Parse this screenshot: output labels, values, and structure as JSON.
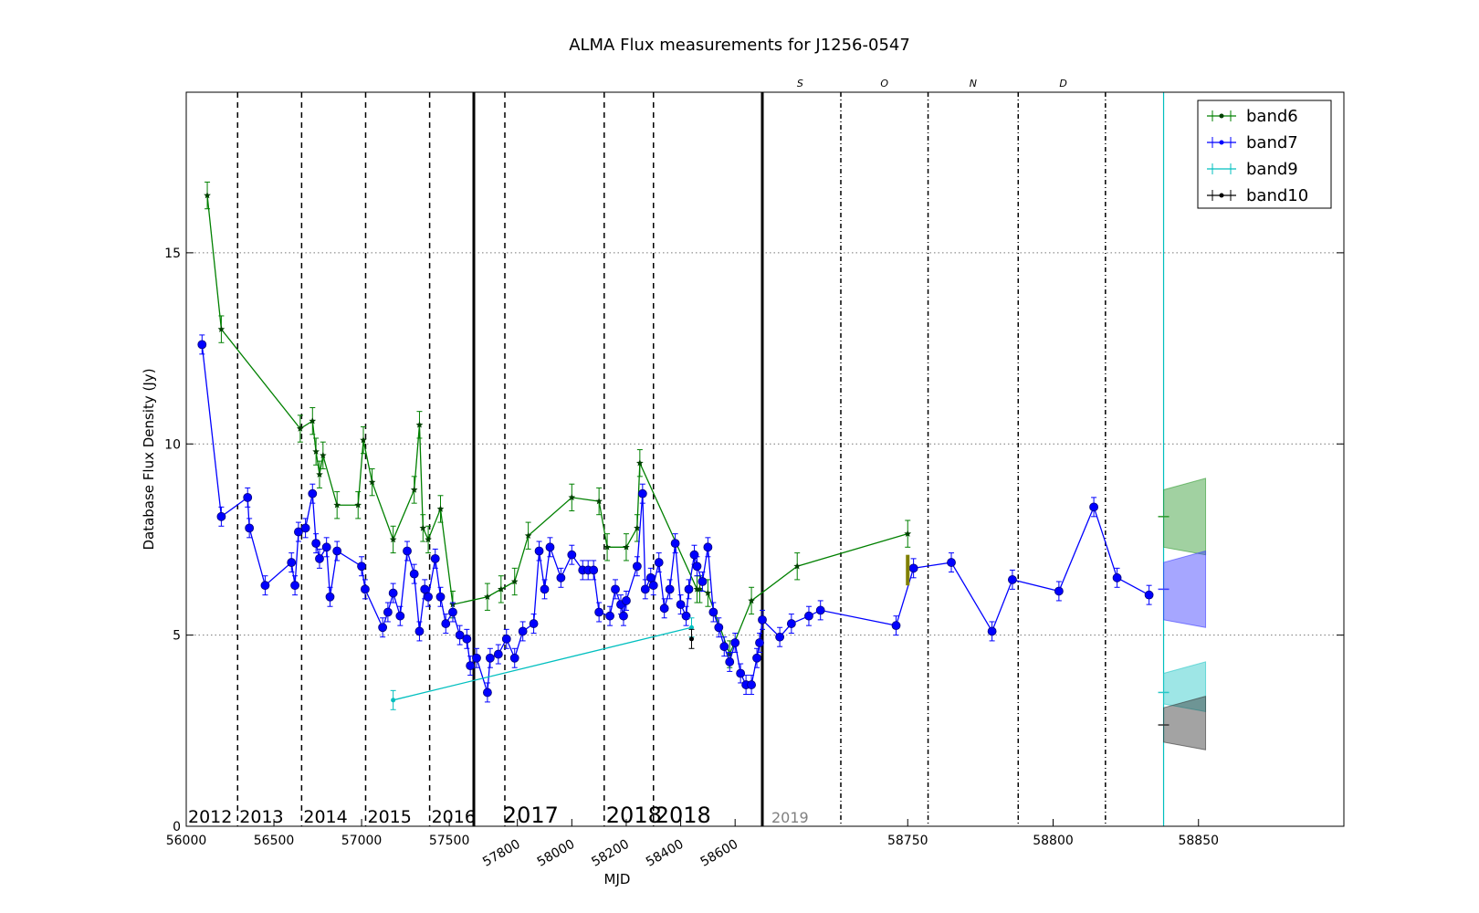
{
  "title": "ALMA Flux measurements for J1256-0547",
  "xlabel": "MJD",
  "ylabel": "Database Flux Density (Jy)",
  "colors": {
    "band6": "#008000",
    "band7": "#0000ff",
    "band9": "#00bfbf",
    "band10": "#000000",
    "band6_marker": "#004000",
    "olive": "#808000",
    "grid": "#777777",
    "year_2019": "#808080"
  },
  "chart_data": {
    "type": "line",
    "title": "ALMA Flux measurements for J1256-0547",
    "xlabel": "MJD",
    "ylabel": "Database Flux Density (Jy)",
    "ylim": [
      0,
      19.2
    ],
    "y_ticks": [
      "0",
      "5",
      "10",
      "15"
    ],
    "grid": "horizontal dotted at 5, 10, 15",
    "legend": {
      "placement": "top-right",
      "entries": [
        "band6",
        "band7",
        "band9",
        "band10"
      ]
    },
    "segments": [
      {
        "name": "2012-2016",
        "xlim": [
          56000,
          57640
        ],
        "x_ticks": [
          "56000",
          "56500",
          "57000",
          "57500"
        ],
        "year_labels": [
          "2012",
          "2013",
          "2014",
          "2015",
          "2016"
        ],
        "year_boundaries": [
          56293,
          56658,
          57023,
          57388
        ]
      },
      {
        "name": "2017-2018",
        "xlim": [
          57640,
          58700
        ],
        "x_ticks": [
          "57800",
          "58000",
          "58200",
          "58400",
          "58600"
        ],
        "year_labels": [
          "2017",
          "2018",
          "2018"
        ],
        "quarter_boundaries": [
          57754,
          58119,
          58300
        ]
      },
      {
        "name": "2019",
        "xlim": [
          58700,
          58900
        ],
        "x_ticks": [
          "58750",
          "58800",
          "58850"
        ],
        "year_labels": [
          "2019"
        ],
        "month_labels": [
          "S",
          "O",
          "N",
          "D"
        ],
        "month_boundaries": [
          58727,
          58757,
          58788,
          58818
        ],
        "current_date": 58838
      }
    ],
    "series": [
      {
        "name": "band6",
        "x": [
          56120,
          56200,
          56650,
          56720,
          56740,
          56760,
          56780,
          56860,
          56980,
          57010,
          57060,
          57180,
          57300,
          57330,
          57350,
          57380,
          57450,
          57520,
          57690,
          57740,
          57790,
          57840,
          58000,
          58100,
          58130,
          58200,
          58240,
          58250,
          58460,
          58470,
          58500,
          58580,
          58660,
          58712,
          58750
        ],
        "y": [
          16.5,
          13.0,
          10.4,
          10.6,
          9.8,
          9.2,
          9.7,
          8.4,
          8.4,
          10.1,
          9.0,
          7.5,
          8.8,
          10.5,
          7.8,
          7.5,
          8.3,
          5.8,
          6.0,
          6.2,
          6.4,
          7.6,
          8.6,
          8.5,
          7.3,
          7.3,
          7.8,
          9.5,
          6.2,
          6.2,
          6.1,
          4.5,
          5.9,
          6.8,
          7.65
        ]
      },
      {
        "name": "band7",
        "x": [
          56090,
          56200,
          56350,
          56360,
          56450,
          56600,
          56620,
          56640,
          56680,
          56720,
          56740,
          56760,
          56800,
          56820,
          56860,
          57000,
          57020,
          57120,
          57150,
          57180,
          57220,
          57260,
          57300,
          57330,
          57360,
          57380,
          57420,
          57450,
          57480,
          57520,
          57560,
          57600,
          57620,
          57650,
          57690,
          57700,
          57730,
          57760,
          57790,
          57820,
          57860,
          57880,
          57900,
          57920,
          57960,
          58000,
          58040,
          58060,
          58080,
          58100,
          58140,
          58160,
          58180,
          58190,
          58200,
          58240,
          58260,
          58270,
          58290,
          58300,
          58320,
          58340,
          58360,
          58380,
          58400,
          58420,
          58430,
          58450,
          58460,
          58480,
          58500,
          58520,
          58540,
          58560,
          58580,
          58600,
          58620,
          58640,
          58660,
          58680,
          58690,
          58700,
          58706,
          58710,
          58716,
          58720,
          58746,
          58752,
          58765,
          58779,
          58786,
          58802,
          58814,
          58822,
          58833
        ],
        "y": [
          12.6,
          8.1,
          8.6,
          7.8,
          6.3,
          6.9,
          6.3,
          7.7,
          7.8,
          8.7,
          7.4,
          7.0,
          7.3,
          6.0,
          7.2,
          6.8,
          6.2,
          5.2,
          5.6,
          6.1,
          5.5,
          7.2,
          6.6,
          5.1,
          6.2,
          6.0,
          7.0,
          6.0,
          5.3,
          5.6,
          5.0,
          4.9,
          4.2,
          4.4,
          3.5,
          4.4,
          4.5,
          4.9,
          4.4,
          5.1,
          5.3,
          7.2,
          6.2,
          7.3,
          6.5,
          7.1,
          6.7,
          6.7,
          6.7,
          5.6,
          5.5,
          6.2,
          5.8,
          5.5,
          5.9,
          6.8,
          8.7,
          6.2,
          6.5,
          6.3,
          6.9,
          5.7,
          6.2,
          7.4,
          5.8,
          5.5,
          6.2,
          7.1,
          6.8,
          6.4,
          7.3,
          5.6,
          5.2,
          4.7,
          4.3,
          4.8,
          4.0,
          3.7,
          3.7,
          4.4,
          4.8,
          5.4,
          4.95,
          5.3,
          5.5,
          5.65,
          5.25,
          6.75,
          6.9,
          5.1,
          6.45,
          6.15,
          8.35,
          6.5,
          6.05
        ]
      },
      {
        "name": "band9",
        "x": [
          57180,
          58440
        ],
        "y": [
          3.3,
          5.2
        ]
      },
      {
        "name": "band10",
        "x": [
          58440
        ],
        "y": [
          4.9
        ]
      }
    ],
    "projections": [
      {
        "name": "band6",
        "center": 8.1,
        "band": [
          7.3,
          8.8
        ]
      },
      {
        "name": "band7",
        "center": 6.2,
        "band": [
          5.4,
          6.9
        ]
      },
      {
        "name": "band9",
        "center": 3.5,
        "band": [
          3.2,
          4.0
        ]
      },
      {
        "name": "band10",
        "center": 2.65,
        "band": [
          2.2,
          3.1
        ]
      }
    ]
  }
}
